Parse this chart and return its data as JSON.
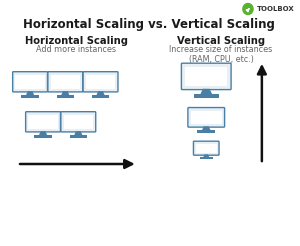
{
  "title": "Horizontal Scaling vs. Vertical Scaling",
  "left_heading": "Horizontal Scaling",
  "left_sub": "Add more instances",
  "right_heading": "Vertical Scaling",
  "right_sub": "Increase size of instances\n(RAM, CPU, etc.)",
  "background_color": "#ffffff",
  "title_color": "#1a1a1a",
  "heading_color": "#1a1a1a",
  "sub_color": "#666666",
  "monitor_fill": "#ffffff",
  "monitor_screen_fill": "#e8f0f5",
  "monitor_stroke": "#4a7fa5",
  "monitor_base": "#4a7fa5",
  "arrow_color": "#111111",
  "toolbox_green": "#5ab030",
  "title_fontsize": 8.5,
  "heading_fontsize": 7.2,
  "sub_fontsize": 5.8,
  "toolbox_fontsize": 5.0
}
